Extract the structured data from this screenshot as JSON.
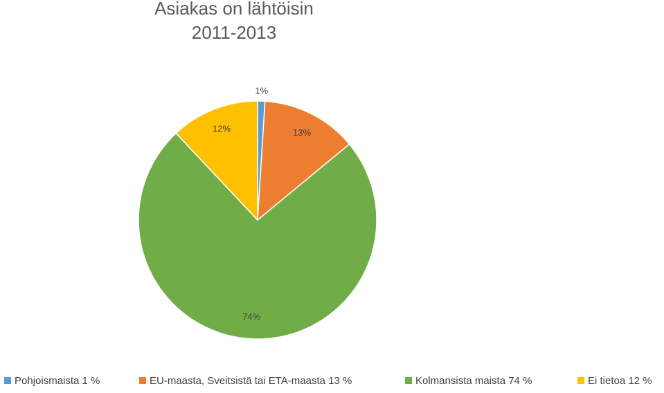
{
  "chart_data": {
    "type": "pie",
    "title": "Asiakas on lähtöisin",
    "subtitle": "2011-2013",
    "categories": [
      "Pohjoismaista 1 %",
      "EU-maasta, Sveitsistä tai ETA-maasta 13 %",
      "Kolmansista maista 74 %",
      "Ei tietoa 12 %"
    ],
    "values": [
      1,
      13,
      74,
      12
    ],
    "value_labels": [
      "1%",
      "13%",
      "74%",
      "12%"
    ],
    "colors": [
      "#5b9bd5",
      "#ed7d31",
      "#70ad47",
      "#ffc000"
    ],
    "legend": "bottom"
  }
}
